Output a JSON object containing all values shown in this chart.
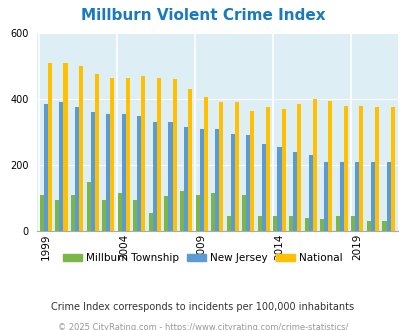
{
  "title": "Millburn Violent Crime Index",
  "years": [
    1999,
    2000,
    2001,
    2002,
    2003,
    2004,
    2005,
    2006,
    2007,
    2008,
    2009,
    2010,
    2011,
    2012,
    2013,
    2014,
    2015,
    2016,
    2017,
    2018,
    2019,
    2020,
    2021
  ],
  "millburn": [
    110,
    95,
    110,
    150,
    95,
    115,
    95,
    55,
    105,
    120,
    110,
    115,
    45,
    110,
    45,
    45,
    45,
    40,
    35,
    45,
    45,
    30,
    30
  ],
  "new_jersey": [
    385,
    390,
    375,
    360,
    355,
    355,
    350,
    330,
    330,
    315,
    310,
    310,
    295,
    290,
    265,
    255,
    240,
    230,
    210,
    210,
    210,
    210,
    210
  ],
  "national": [
    510,
    510,
    500,
    475,
    465,
    465,
    470,
    465,
    460,
    430,
    405,
    390,
    390,
    365,
    375,
    370,
    385,
    400,
    395,
    380,
    380,
    375,
    375
  ],
  "ylim": [
    0,
    600
  ],
  "yticks": [
    0,
    200,
    400,
    600
  ],
  "xtick_years": [
    1999,
    2004,
    2009,
    2014,
    2019
  ],
  "millburn_color": "#7ab648",
  "nj_color": "#5b9bd5",
  "national_color": "#ffc000",
  "plot_bg": "#deeef5",
  "title_color": "#1a7abf",
  "legend_labels": [
    "Millburn Township",
    "New Jersey",
    "National"
  ],
  "subtitle": "Crime Index corresponds to incidents per 100,000 inhabitants",
  "copyright": "© 2025 CityRating.com - https://www.cityrating.com/crime-statistics/",
  "subtitle_color": "#333333",
  "copyright_color": "#999999"
}
